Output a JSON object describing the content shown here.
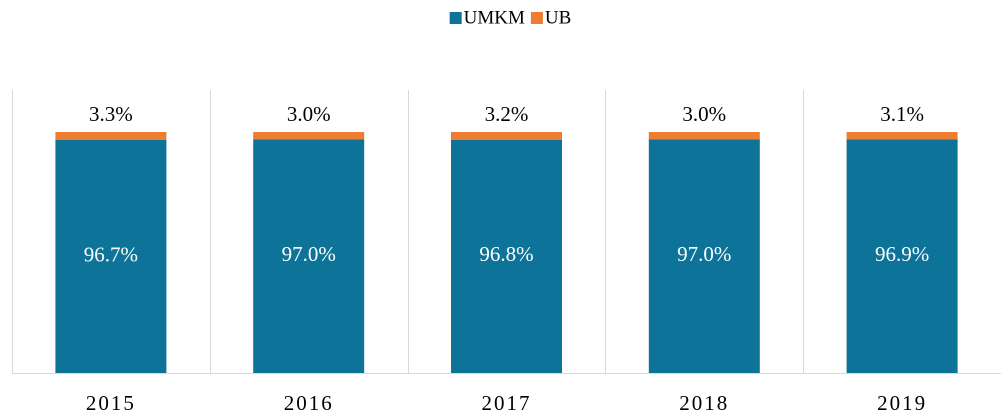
{
  "chart_data": {
    "type": "stacked_bar",
    "categories": [
      "2015",
      "2016",
      "2017",
      "2018",
      "2019"
    ],
    "series": [
      {
        "name": "UMKM",
        "color": "#0e7399",
        "values": [
          96.7,
          97.0,
          96.8,
          97.0,
          96.9
        ],
        "value_labels": [
          "96.7%",
          "97.0%",
          "96.8%",
          "97.0%",
          "96.9%"
        ]
      },
      {
        "name": "UB",
        "color": "#ed7d31",
        "values": [
          3.3,
          3.0,
          3.2,
          3.0,
          3.1
        ],
        "value_labels": [
          "3.3%",
          "3.0%",
          "3.2%",
          "3.0%",
          "3.1%"
        ]
      }
    ],
    "ylim": [
      0,
      100
    ],
    "legend": "top"
  }
}
